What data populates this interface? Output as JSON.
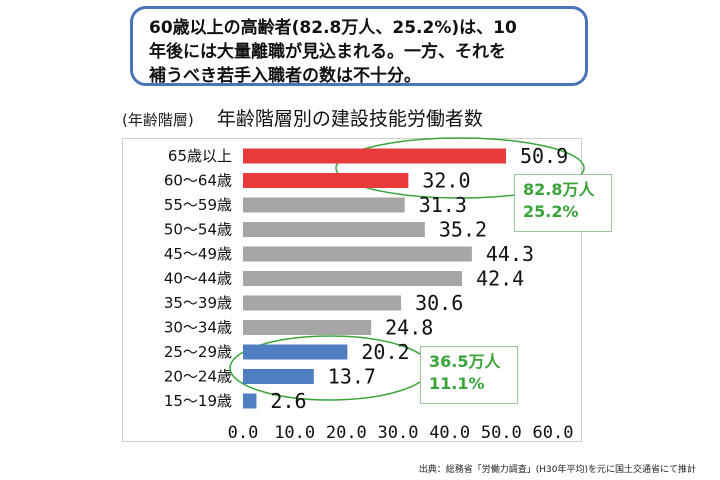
{
  "callout": {
    "lines": [
      "60歳以上の高齢者(82.8万人、25.2%)は、10",
      "年後には大量離職が見込まれる。一方、それを",
      "補うべき若手入職者の数は不十分。"
    ]
  },
  "header": {
    "unit_label": "(年齢階層)",
    "title": "年齢階層別の建設技能労働者数"
  },
  "chart_data": {
    "type": "bar",
    "orientation": "horizontal",
    "categories": [
      "65歳以上",
      "60〜64歳",
      "55〜59歳",
      "50〜54歳",
      "45〜49歳",
      "40〜44歳",
      "35〜39歳",
      "30〜34歳",
      "25〜29歳",
      "20〜24歳",
      "15〜19歳"
    ],
    "values": [
      50.9,
      32.0,
      31.3,
      35.2,
      44.3,
      42.4,
      30.6,
      24.8,
      20.2,
      13.7,
      2.6
    ],
    "value_labels": [
      "50.9",
      "32.0",
      "31.3",
      "35.2",
      "44.3",
      "42.4",
      "30.6",
      "24.8",
      "20.2",
      "13.7",
      "2.6"
    ],
    "bar_colors": [
      "#e8393b",
      "#e8393b",
      "#a6a6a6",
      "#a6a6a6",
      "#a6a6a6",
      "#a6a6a6",
      "#a6a6a6",
      "#a6a6a6",
      "#4f7fc0",
      "#4f7fc0",
      "#4f7fc0"
    ],
    "xlim": [
      0,
      60
    ],
    "xticks": [
      "0.0",
      "10.0",
      "20.0",
      "30.0",
      "40.0",
      "50.0",
      "60.0"
    ],
    "grid": false
  },
  "annotations": {
    "senior": {
      "line1": "82.8万人",
      "line2": "25.2%"
    },
    "young": {
      "line1": "36.5万人",
      "line2": "11.1%"
    },
    "color": "#3aa43a"
  },
  "source": "出典：総務省「労働力調査」(H30年平均)を元に国土交通省にて推計"
}
